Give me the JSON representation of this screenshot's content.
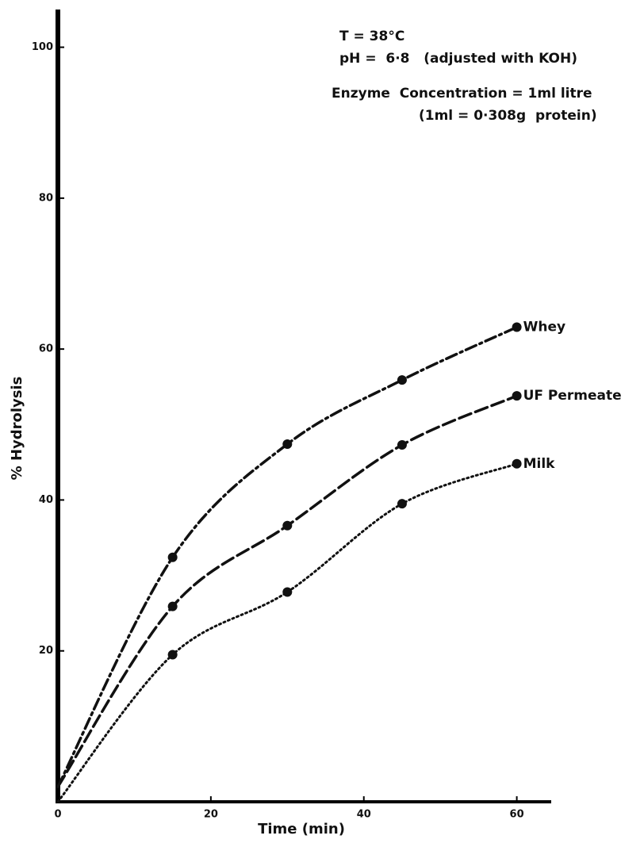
{
  "chart_data": {
    "type": "line",
    "x_label": "Time (min)",
    "y_label": "% Hydrolysis",
    "annotations": [
      "T  = 38°C",
      "pH =  6·8   (adjusted with KOH)",
      "Enzyme  Concentration = 1ml litre",
      "(1ml = 0·308g  protein)"
    ],
    "xlim": [
      0,
      64.5
    ],
    "ylim": [
      0,
      105
    ],
    "xticks": [
      0,
      20,
      40,
      60
    ],
    "yticks": [
      20,
      40,
      60,
      80,
      100
    ],
    "series": [
      {
        "name": "Whey",
        "color": "#111111",
        "style": "dashdot",
        "x": [
          0,
          15,
          30,
          45,
          60
        ],
        "values": [
          2,
          32.4,
          47.4,
          55.9,
          62.9
        ]
      },
      {
        "name": "UF Permeate",
        "color": "#111111",
        "style": "dashed",
        "x": [
          0,
          15,
          30,
          45,
          60
        ],
        "values": [
          2,
          25.9,
          36.6,
          47.3,
          53.8
        ]
      },
      {
        "name": "Milk",
        "color": "#111111",
        "style": "dotted",
        "x": [
          0,
          15,
          30,
          45,
          60
        ],
        "values": [
          0,
          19.5,
          27.8,
          39.5,
          44.8
        ]
      }
    ]
  }
}
